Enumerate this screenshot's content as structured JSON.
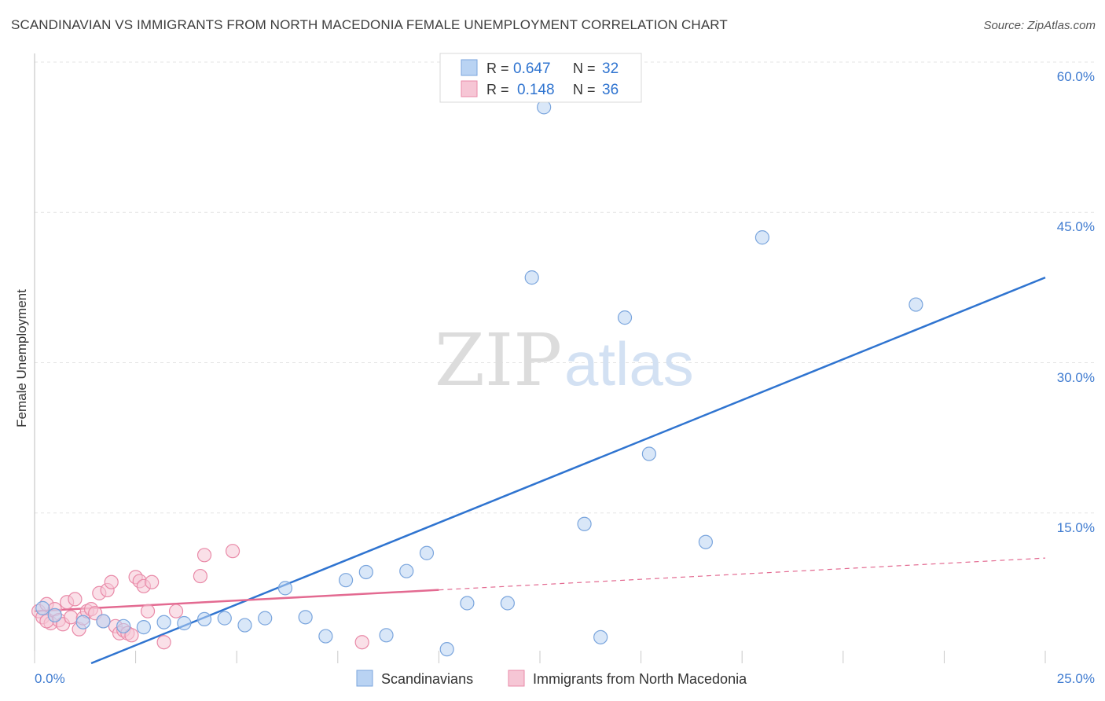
{
  "header": {
    "title": "SCANDINAVIAN VS IMMIGRANTS FROM NORTH MACEDONIA FEMALE UNEMPLOYMENT CORRELATION CHART",
    "source": "Source: ZipAtlas.com"
  },
  "watermark": {
    "zip": "ZIP",
    "atlas": "atlas"
  },
  "colors": {
    "blue_fill": "#b9d3f3",
    "blue_stroke": "#7aa5dd",
    "blue_line": "#2f74d0",
    "pink_fill": "#f6c6d5",
    "pink_stroke": "#e98aa8",
    "pink_line": "#e36a91",
    "tick_label": "#3f7bd0",
    "grid": "#e4e4e4"
  },
  "legend_top": {
    "r_label": "R =",
    "n_label": "N =",
    "rows": [
      {
        "series": "Scandinavians",
        "r": "0.647",
        "n": "32"
      },
      {
        "series": "Immigrants from North Macedonia",
        "r": "0.148",
        "n": "36"
      }
    ]
  },
  "chart_data": {
    "type": "scatter",
    "title": "SCANDINAVIAN VS IMMIGRANTS FROM NORTH MACEDONIA FEMALE UNEMPLOYMENT CORRELATION CHART",
    "xlabel": "",
    "ylabel": "Female Unemployment",
    "xlim": [
      0,
      25
    ],
    "ylim": [
      0,
      60
    ],
    "x_tick_labels": [
      "0.0%",
      "25.0%"
    ],
    "y_ticks": [
      15,
      30,
      45,
      60
    ],
    "y_tick_labels": [
      "15.0%",
      "30.0%",
      "45.0%",
      "60.0%"
    ],
    "grid": true,
    "legend_position": "bottom-center",
    "series": [
      {
        "name": "Scandinavians",
        "color": "#6fa0dc",
        "points": [
          [
            0.2,
            5.5
          ],
          [
            0.5,
            4.8
          ],
          [
            1.2,
            4.1
          ],
          [
            1.7,
            4.2
          ],
          [
            2.2,
            3.7
          ],
          [
            2.7,
            3.6
          ],
          [
            3.2,
            4.1
          ],
          [
            3.7,
            4.0
          ],
          [
            4.2,
            4.4
          ],
          [
            4.7,
            4.5
          ],
          [
            5.2,
            3.8
          ],
          [
            5.7,
            4.5
          ],
          [
            6.2,
            7.5
          ],
          [
            6.7,
            4.6
          ],
          [
            7.2,
            2.7
          ],
          [
            7.7,
            8.3
          ],
          [
            8.2,
            9.1
          ],
          [
            8.7,
            2.8
          ],
          [
            9.2,
            9.2
          ],
          [
            9.7,
            11.0
          ],
          [
            10.2,
            1.4
          ],
          [
            10.7,
            6.0
          ],
          [
            11.7,
            6.0
          ],
          [
            12.3,
            38.5
          ],
          [
            12.6,
            55.5
          ],
          [
            13.6,
            13.9
          ],
          [
            14.0,
            2.6
          ],
          [
            14.6,
            34.5
          ],
          [
            15.2,
            20.9
          ],
          [
            16.6,
            12.1
          ],
          [
            18.0,
            42.5
          ],
          [
            21.8,
            35.8
          ]
        ],
        "trendline": {
          "x": [
            1.4,
            25
          ],
          "y": [
            0,
            38.5
          ]
        }
      },
      {
        "name": "Immigrants from North Macedonia",
        "color": "#eb8fae",
        "points": [
          [
            0.1,
            5.2
          ],
          [
            0.2,
            4.6
          ],
          [
            0.3,
            5.9
          ],
          [
            0.4,
            4.0
          ],
          [
            0.5,
            5.4
          ],
          [
            0.6,
            4.3
          ],
          [
            0.7,
            3.9
          ],
          [
            0.8,
            6.1
          ],
          [
            0.9,
            4.6
          ],
          [
            1.0,
            6.4
          ],
          [
            1.1,
            3.4
          ],
          [
            1.2,
            4.5
          ],
          [
            1.3,
            5.2
          ],
          [
            1.4,
            5.4
          ],
          [
            1.5,
            5.0
          ],
          [
            1.6,
            7.0
          ],
          [
            1.7,
            4.2
          ],
          [
            1.8,
            7.3
          ],
          [
            1.9,
            8.1
          ],
          [
            2.0,
            3.7
          ],
          [
            2.1,
            3.0
          ],
          [
            2.2,
            3.3
          ],
          [
            2.3,
            3.0
          ],
          [
            2.4,
            2.8
          ],
          [
            2.5,
            8.6
          ],
          [
            2.6,
            8.2
          ],
          [
            2.7,
            7.7
          ],
          [
            2.8,
            5.2
          ],
          [
            2.9,
            8.1
          ],
          [
            3.5,
            5.2
          ],
          [
            3.2,
            2.1
          ],
          [
            4.1,
            8.7
          ],
          [
            4.2,
            10.8
          ],
          [
            4.9,
            11.2
          ],
          [
            8.1,
            2.1
          ],
          [
            0.3,
            4.2
          ]
        ],
        "trendline": {
          "x": [
            0,
            25
          ],
          "y": [
            5.2,
            10.5
          ],
          "solid_until_x": 10
        }
      }
    ]
  }
}
